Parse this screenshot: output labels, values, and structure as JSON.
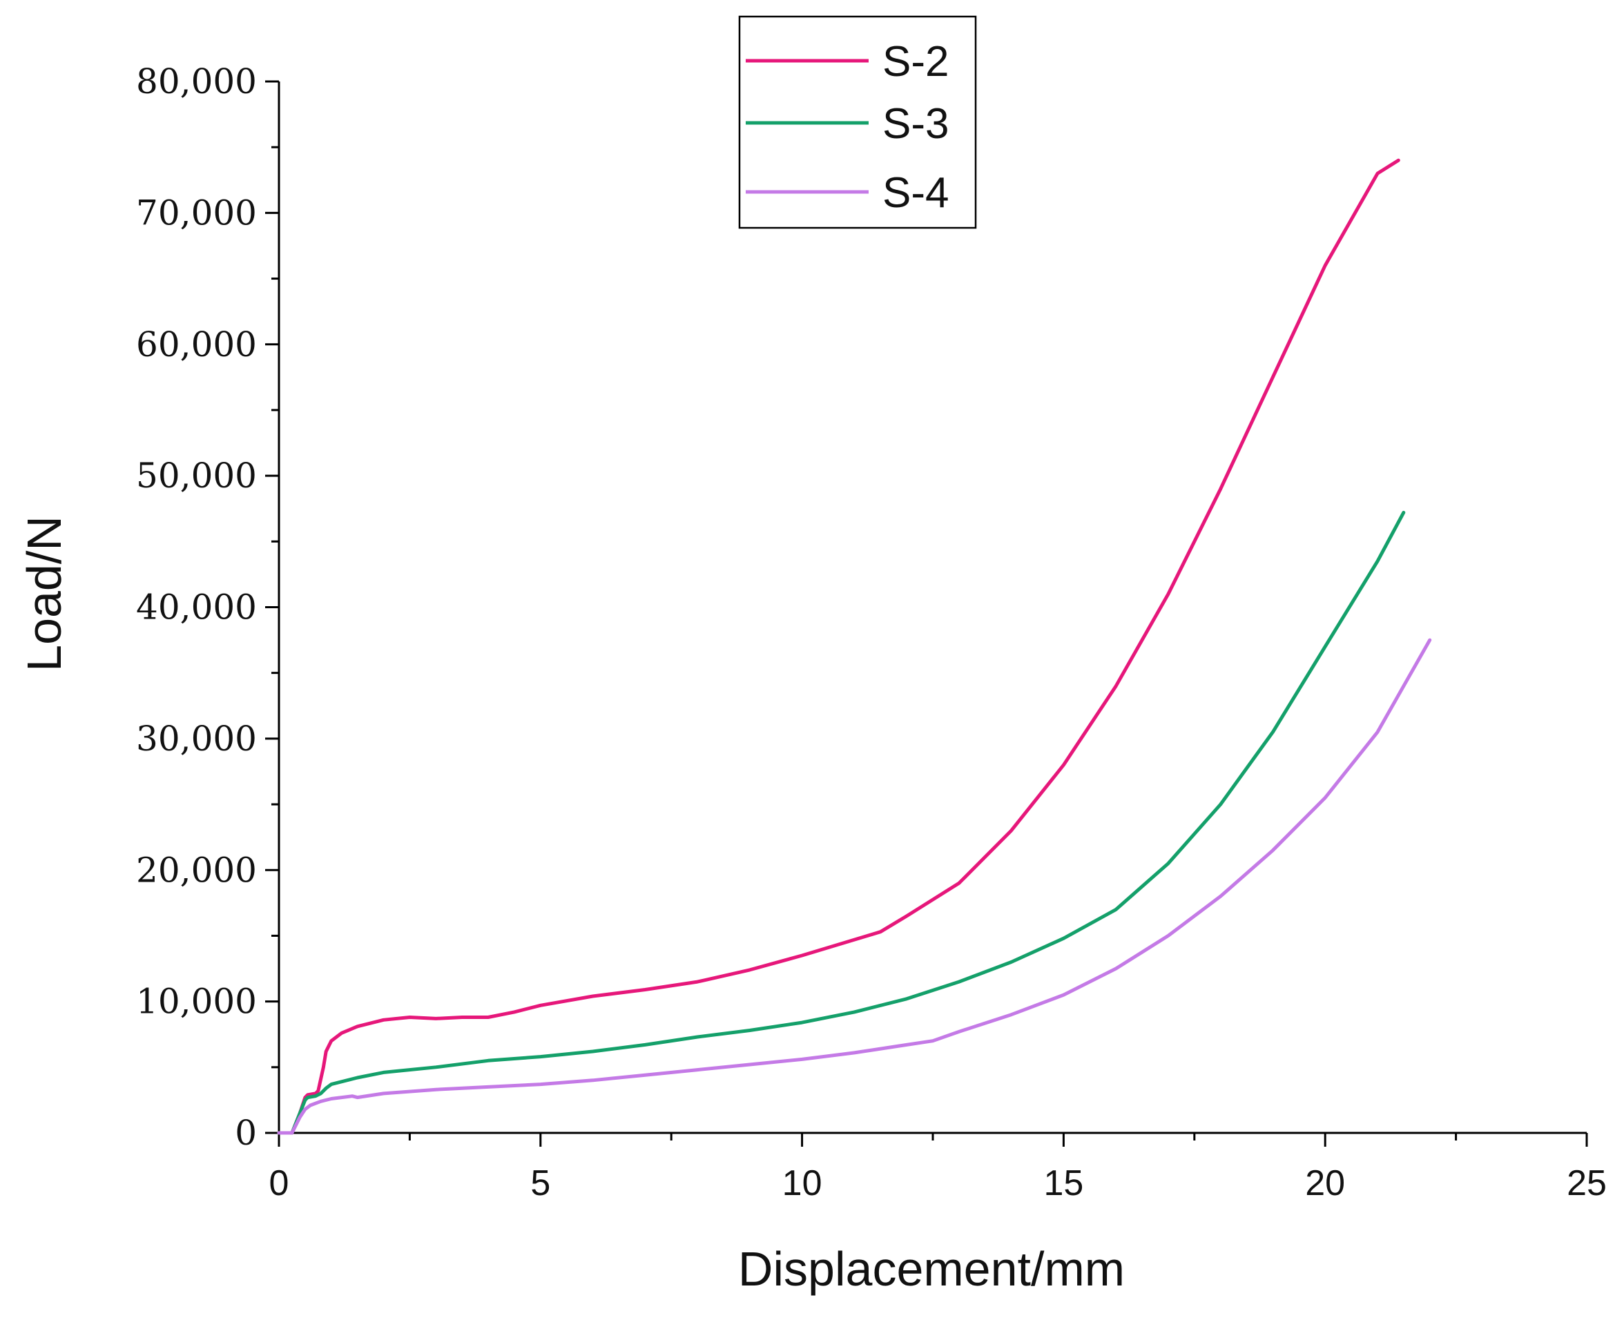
{
  "chart_data": {
    "type": "line",
    "title": "",
    "xlabel": "Displacement/mm",
    "ylabel": "Load/N",
    "xlim": [
      0,
      25
    ],
    "ylim": [
      0,
      80000
    ],
    "xticks": [
      0,
      5,
      10,
      15,
      20,
      25
    ],
    "xtick_labels": [
      "0",
      "5",
      "10",
      "15",
      "20",
      "25"
    ],
    "yticks": [
      0,
      10000,
      20000,
      30000,
      40000,
      50000,
      60000,
      70000,
      80000
    ],
    "ytick_labels": [
      "0",
      "10,000",
      "20,000",
      "30,000",
      "40,000",
      "50,000",
      "60,000",
      "70,000",
      "80,000"
    ],
    "grid": false,
    "legend_position": "top-center",
    "series": [
      {
        "name": "S-2",
        "color": "#e6177a",
        "x": [
          0,
          0.25,
          0.4,
          0.5,
          0.55,
          0.7,
          0.75,
          0.85,
          0.9,
          1.0,
          1.2,
          1.5,
          2.0,
          2.5,
          3.0,
          3.5,
          4.0,
          4.5,
          5.0,
          6.0,
          7.0,
          8.0,
          9.0,
          10.0,
          11.0,
          11.5,
          12.0,
          13.0,
          14.0,
          15.0,
          16.0,
          17.0,
          18.0,
          19.0,
          20.0,
          21.0,
          21.4
        ],
        "y": [
          0,
          0,
          1500,
          2700,
          2900,
          3000,
          3200,
          5000,
          6200,
          7000,
          7600,
          8100,
          8600,
          8800,
          8700,
          8800,
          8800,
          9200,
          9700,
          10400,
          10900,
          11500,
          12400,
          13500,
          14700,
          15300,
          16500,
          19000,
          23000,
          28000,
          34000,
          41000,
          49000,
          57500,
          66000,
          73000,
          74000
        ]
      },
      {
        "name": "S-3",
        "color": "#14a06a",
        "x": [
          0,
          0.25,
          0.4,
          0.5,
          0.55,
          0.7,
          0.8,
          0.9,
          1.0,
          1.5,
          2.0,
          3.0,
          4.0,
          5.0,
          6.0,
          7.0,
          8.0,
          9.0,
          10.0,
          11.0,
          12.0,
          13.0,
          14.0,
          15.0,
          16.0,
          17.0,
          18.0,
          19.0,
          20.0,
          21.0,
          21.5
        ],
        "y": [
          0,
          0,
          1500,
          2500,
          2700,
          2800,
          3000,
          3400,
          3700,
          4200,
          4600,
          5000,
          5500,
          5800,
          6200,
          6700,
          7300,
          7800,
          8400,
          9200,
          10200,
          11500,
          13000,
          14800,
          17000,
          20500,
          25000,
          30500,
          37000,
          43500,
          47200
        ]
      },
      {
        "name": "S-4",
        "color": "#c47ae6",
        "x": [
          0,
          0.25,
          0.4,
          0.5,
          0.6,
          0.8,
          1.0,
          1.4,
          1.5,
          2.0,
          3.0,
          4.0,
          5.0,
          6.0,
          7.0,
          8.0,
          9.0,
          10.0,
          11.0,
          12.0,
          12.5,
          13.0,
          14.0,
          15.0,
          16.0,
          17.0,
          18.0,
          19.0,
          20.0,
          21.0,
          22.0
        ],
        "y": [
          0,
          0,
          1200,
          1800,
          2100,
          2400,
          2600,
          2800,
          2700,
          3000,
          3300,
          3500,
          3700,
          4000,
          4400,
          4800,
          5200,
          5600,
          6100,
          6700,
          7000,
          7700,
          9000,
          10500,
          12500,
          15000,
          18000,
          21500,
          25500,
          30500,
          37500
        ]
      }
    ]
  }
}
